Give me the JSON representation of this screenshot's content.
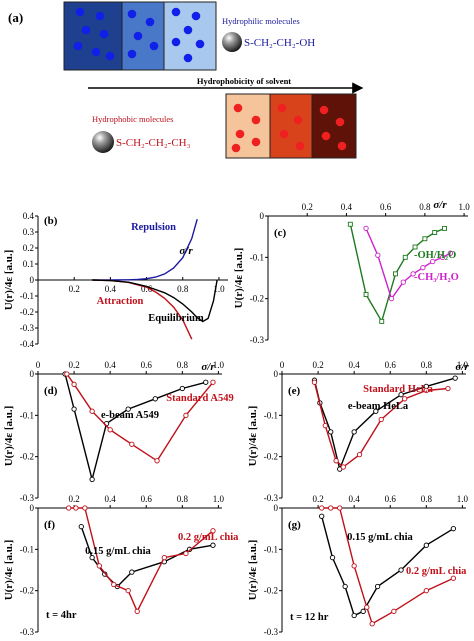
{
  "panel_a": {
    "label": "(a)",
    "hydrophilic_label": "Hydrophilic molecules",
    "hydrophobic_label": "Hydrophobic molecules",
    "hydrophilic_formula": "S-CH₂-CH₂-OH",
    "hydrophobic_formula": "S-CH₂-CH₂-CH₃",
    "arrow_label": "Hydrophobicity of solvent",
    "blue_box_colors": [
      "#1f3f8f",
      "#4a78c8",
      "#a8c8ee"
    ],
    "red_box_colors": [
      "#f5c49a",
      "#d9431c",
      "#5e1208"
    ],
    "blue_particle_color": "#1020e8",
    "red_particle_color": "#ee2020"
  },
  "colors": {
    "blue_curve": "#1a1aa0",
    "red_curve": "#c0101a",
    "black_curve": "#000000",
    "green_curve": "#1e7a1e",
    "magenta_curve": "#cc22cc"
  },
  "chart_data": [
    {
      "panel": "(b)",
      "type": "line",
      "xlabel": "σ/r",
      "ylabel": "U(r)/4ε [a.u.]",
      "xlim": [
        0,
        1.05
      ],
      "ylim": [
        -0.4,
        0.4
      ],
      "xticks": [
        "0.2",
        "0.4",
        "0.6",
        "0.8",
        "1.0"
      ],
      "yticks": [
        "0.4",
        "0.3",
        "0.2",
        "0.1",
        "0",
        "-0.1",
        "-0.2",
        "-0.3",
        "-0.4"
      ],
      "annotations": [
        "Repulsion",
        "Attraction",
        "Equilibrium"
      ],
      "series": [
        {
          "name": "Repulsion",
          "x": [
            0.3,
            0.4,
            0.5,
            0.55,
            0.6,
            0.65,
            0.7,
            0.75,
            0.8,
            0.85,
            0.88
          ],
          "y": [
            0,
            0,
            0.001,
            0.003,
            0.008,
            0.018,
            0.038,
            0.075,
            0.14,
            0.26,
            0.38
          ]
        },
        {
          "name": "Attraction",
          "x": [
            0.3,
            0.4,
            0.5,
            0.6,
            0.65,
            0.7,
            0.75,
            0.8,
            0.85
          ],
          "y": [
            0,
            -0.004,
            -0.015,
            -0.045,
            -0.075,
            -0.115,
            -0.17,
            -0.25,
            -0.37
          ]
        },
        {
          "name": "Equilibrium",
          "x": [
            0.3,
            0.4,
            0.5,
            0.6,
            0.7,
            0.75,
            0.8,
            0.85,
            0.88,
            0.91,
            0.94,
            0.97,
            0.99
          ],
          "y": [
            0,
            -0.004,
            -0.014,
            -0.04,
            -0.08,
            -0.11,
            -0.15,
            -0.2,
            -0.235,
            -0.26,
            -0.24,
            -0.13,
            0
          ]
        }
      ]
    },
    {
      "panel": "(c)",
      "type": "line",
      "xlabel": "σ/r",
      "ylabel": "U(r)/4ε [a.u.]",
      "xlim": [
        0,
        1.02
      ],
      "ylim": [
        -0.3,
        0
      ],
      "xticks": [
        "0.2",
        "0.4",
        "0.6",
        "0.8",
        "1.0"
      ],
      "yticks": [
        "0",
        "-0.1",
        "-0.2",
        "-0.3"
      ],
      "series": [
        {
          "name": "-OH/H₂O",
          "x": [
            0.42,
            0.5,
            0.58,
            0.65,
            0.7,
            0.75,
            0.8,
            0.85,
            0.9
          ],
          "y": [
            -0.02,
            -0.19,
            -0.255,
            -0.14,
            -0.1,
            -0.075,
            -0.055,
            -0.04,
            -0.03
          ]
        },
        {
          "name": "-CH₃/H₂O",
          "x": [
            0.5,
            0.56,
            0.63,
            0.69,
            0.74,
            0.79,
            0.84,
            0.89,
            0.93
          ],
          "y": [
            -0.03,
            -0.095,
            -0.2,
            -0.16,
            -0.14,
            -0.125,
            -0.11,
            -0.1,
            -0.09
          ]
        }
      ]
    },
    {
      "panel": "(d)",
      "type": "line",
      "xlabel": "σ/r",
      "ylabel": "U(r)/4ε [a.u.]",
      "xlim": [
        0,
        1.02
      ],
      "ylim": [
        -0.3,
        0
      ],
      "xticks": [
        "0",
        "0.2",
        "0.4",
        "0.6",
        "0.8",
        "1.0"
      ],
      "yticks": [
        "0",
        "-0.1",
        "-0.2",
        "-0.3"
      ],
      "series": [
        {
          "name": "e-beam A549",
          "x": [
            0.15,
            0.2,
            0.3,
            0.38,
            0.5,
            0.65,
            0.8,
            0.93
          ],
          "y": [
            0,
            -0.085,
            -0.255,
            -0.12,
            -0.085,
            -0.06,
            -0.035,
            -0.02
          ]
        },
        {
          "name": "Standard A549",
          "x": [
            0.16,
            0.2,
            0.3,
            0.4,
            0.52,
            0.66,
            0.82,
            0.97
          ],
          "y": [
            0,
            -0.025,
            -0.09,
            -0.135,
            -0.17,
            -0.21,
            -0.1,
            -0.02
          ]
        }
      ]
    },
    {
      "panel": "(e)",
      "type": "line",
      "xlabel": "σ/r",
      "ylabel": "U(r)/4ε [a.u.]",
      "xlim": [
        0,
        1.02
      ],
      "ylim": [
        -0.3,
        0
      ],
      "xticks": [
        "0",
        "0.2",
        "0.4",
        "0.6",
        "0.8",
        "1.0"
      ],
      "yticks": [
        "0",
        "-0.1",
        "-0.2",
        "-0.3"
      ],
      "series": [
        {
          "name": "e-beam HeLa",
          "x": [
            0.18,
            0.21,
            0.27,
            0.32,
            0.4,
            0.52,
            0.66,
            0.8,
            0.96
          ],
          "y": [
            -0.015,
            -0.07,
            -0.14,
            -0.23,
            -0.14,
            -0.09,
            -0.05,
            -0.03,
            -0.01
          ]
        },
        {
          "name": "Standard HeLa",
          "x": [
            0.18,
            0.24,
            0.3,
            0.34,
            0.43,
            0.55,
            0.68,
            0.8,
            0.92
          ],
          "y": [
            -0.02,
            -0.125,
            -0.21,
            -0.225,
            -0.195,
            -0.11,
            -0.06,
            -0.04,
            -0.035
          ]
        }
      ]
    },
    {
      "panel": "(f)",
      "type": "line",
      "xlabel": "",
      "ylabel": "U(r)/4ε [a.u.]",
      "xlim": [
        0,
        1.02
      ],
      "ylim": [
        -0.3,
        0
      ],
      "xticks": [
        "0.2",
        "0.4",
        "0.6",
        "0.8",
        "1.0"
      ],
      "yticks": [
        "0",
        "-0.1",
        "-0.2",
        "-0.3"
      ],
      "annotations": [
        "t = 4hr"
      ],
      "series": [
        {
          "name": "0.15 g/mL chia",
          "x": [
            0.24,
            0.3,
            0.37,
            0.44,
            0.52,
            0.7,
            0.84,
            0.97
          ],
          "y": [
            -0.045,
            -0.12,
            -0.16,
            -0.19,
            -0.155,
            -0.13,
            -0.1,
            -0.09
          ]
        },
        {
          "name": "0.2 g/mL chia",
          "x": [
            0.17,
            0.21,
            0.26,
            0.34,
            0.42,
            0.5,
            0.55,
            0.7,
            0.82,
            0.97
          ],
          "y": [
            0,
            0,
            0,
            -0.14,
            -0.185,
            -0.2,
            -0.25,
            -0.12,
            -0.11,
            -0.055
          ]
        }
      ]
    },
    {
      "panel": "(g)",
      "type": "line",
      "xlabel": "",
      "ylabel": "U(r)/4ε [a.u.]",
      "xlim": [
        0,
        1.02
      ],
      "ylim": [
        -0.3,
        0
      ],
      "xticks": [
        "0.2",
        "0.4",
        "0.6",
        "0.8",
        "1.0"
      ],
      "yticks": [
        "0",
        "-0.1",
        "-0.2",
        "-0.3"
      ],
      "annotations": [
        "t = 12 hr"
      ],
      "series": [
        {
          "name": "0.15 g/mL chia",
          "x": [
            0.22,
            0.28,
            0.35,
            0.4,
            0.45,
            0.53,
            0.66,
            0.8,
            0.95
          ],
          "y": [
            -0.02,
            -0.12,
            -0.19,
            -0.26,
            -0.25,
            -0.19,
            -0.15,
            -0.09,
            -0.05
          ]
        },
        {
          "name": "0.2 g/mL chia",
          "x": [
            0.22,
            0.27,
            0.32,
            0.4,
            0.47,
            0.5,
            0.62,
            0.8,
            0.95
          ],
          "y": [
            0,
            0,
            0,
            -0.14,
            -0.24,
            -0.28,
            -0.25,
            -0.2,
            -0.17
          ]
        }
      ]
    }
  ]
}
